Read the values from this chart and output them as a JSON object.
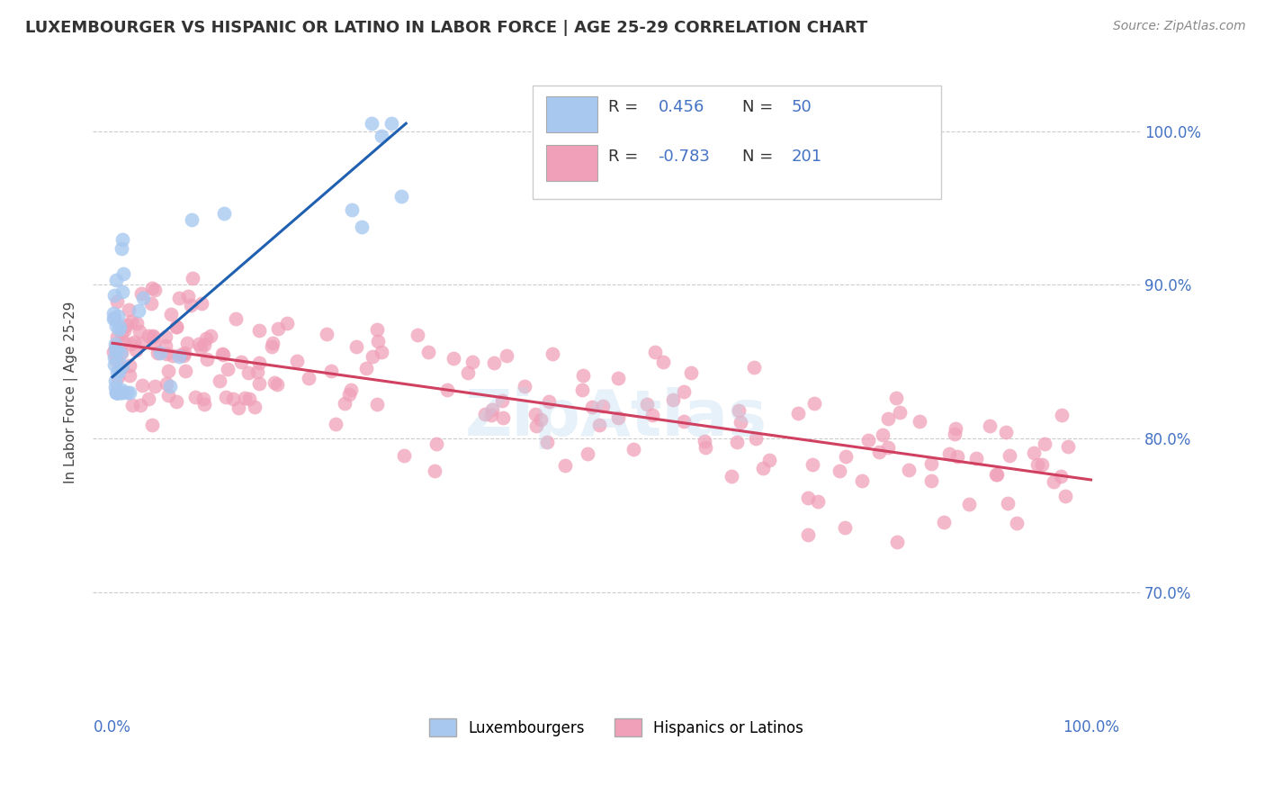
{
  "title": "LUXEMBOURGER VS HISPANIC OR LATINO IN LABOR FORCE | AGE 25-29 CORRELATION CHART",
  "source": "Source: ZipAtlas.com",
  "ylabel": "In Labor Force | Age 25-29",
  "xlim": [
    -0.02,
    1.05
  ],
  "ylim": [
    0.62,
    1.04
  ],
  "yticks": [
    0.7,
    0.8,
    0.9,
    1.0
  ],
  "ytick_labels": [
    "70.0%",
    "80.0%",
    "90.0%",
    "100.0%"
  ],
  "blue_color": "#A8C8F0",
  "pink_color": "#F0A0B8",
  "blue_line_color": "#2060B0",
  "pink_line_color": "#D04060",
  "R_blue": 0.456,
  "N_blue": 50,
  "R_pink": -0.783,
  "N_pink": 201,
  "legend_label_blue": "Luxembourgers",
  "legend_label_pink": "Hispanics or Latinos",
  "watermark": "ZipAtlas",
  "text_color": "#4472C4",
  "grid_color": "#CCCCCC",
  "blue_line_x0": 0.0,
  "blue_line_y0": 0.84,
  "blue_line_x1": 0.3,
  "blue_line_y1": 1.005,
  "pink_line_x0": 0.0,
  "pink_line_y0": 0.862,
  "pink_line_x1": 1.0,
  "pink_line_y1": 0.773
}
